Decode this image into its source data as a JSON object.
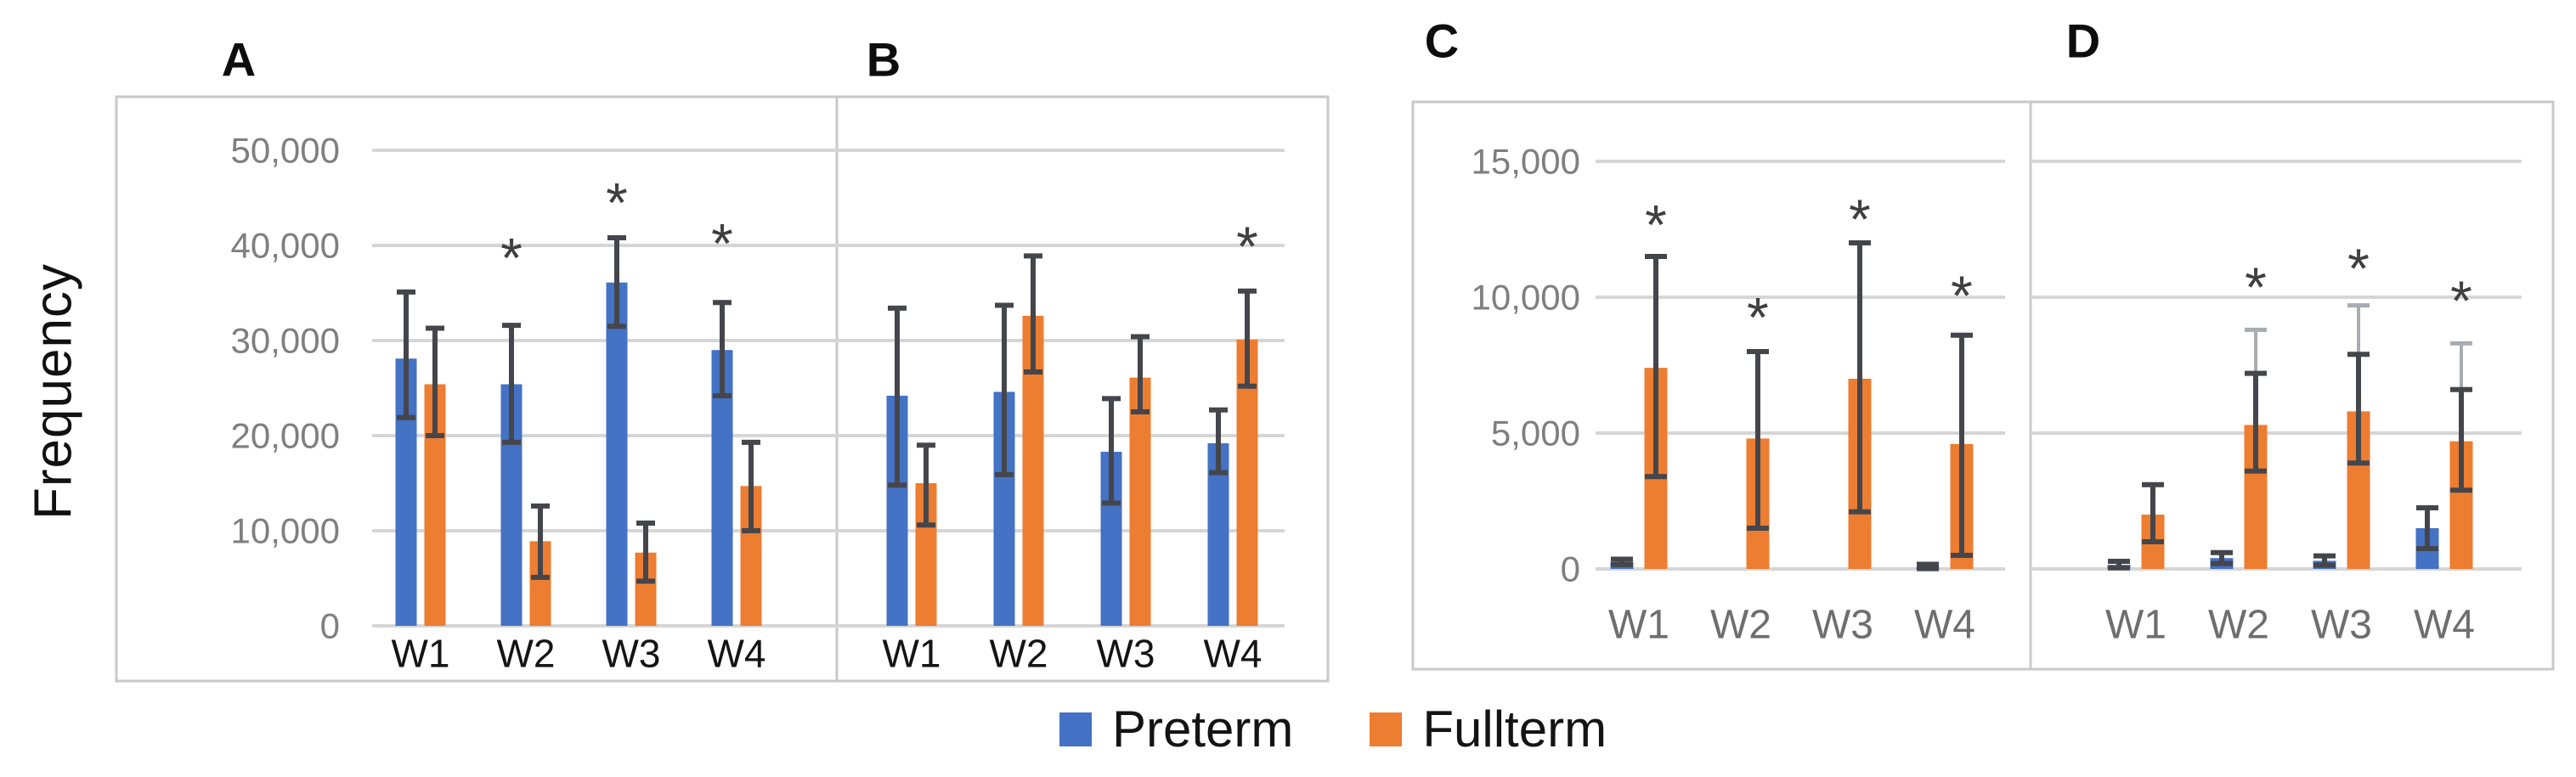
{
  "figure": {
    "y_axis_title": "Frequency",
    "sig_marker": "*"
  },
  "legend": {
    "items": [
      {
        "label": "Preterm",
        "color": "#4472C4"
      },
      {
        "label": "Fullterm",
        "color": "#ED7D31"
      }
    ]
  },
  "colors": {
    "preterm": "#4472C4",
    "fullterm": "#ED7D31",
    "error_bar": "#45464B",
    "light_whisker": "#A9ACB0",
    "gridline": "#D6D6D6",
    "panel_border": "#C9C9C9",
    "tick_label": "#7F7F7F",
    "xlabel_dark": "#141414",
    "xlabel_gray": "#6E6E6E",
    "asterisk": "#3F3F3F"
  },
  "chart_data": [
    {
      "type": "bar",
      "label": "A",
      "categories": [
        "W1",
        "W2",
        "W3",
        "W4"
      ],
      "ylim": [
        0,
        50000
      ],
      "yticks": [
        0,
        10000,
        20000,
        30000,
        40000,
        50000
      ],
      "show_ytick_labels": true,
      "grid": true,
      "series": [
        {
          "name": "Preterm",
          "color": "#4472C4",
          "values": [
            28100,
            25400,
            36100,
            29000
          ],
          "err_lo": [
            21900,
            19300,
            31500,
            24200
          ],
          "err_hi": [
            35100,
            31600,
            40800,
            34000
          ]
        },
        {
          "name": "Fullterm",
          "color": "#ED7D31",
          "values": [
            25400,
            8900,
            7700,
            14700
          ],
          "err_lo": [
            20000,
            5100,
            4700,
            10000
          ],
          "err_hi": [
            31300,
            12600,
            10800,
            19300
          ]
        }
      ],
      "asterisks": [
        {
          "category": "W2",
          "series": "Preterm",
          "y": 38800
        },
        {
          "category": "W3",
          "series": "Preterm",
          "y": 44600
        },
        {
          "category": "W4",
          "series": "Preterm",
          "y": 40300
        }
      ]
    },
    {
      "type": "bar",
      "label": "B",
      "categories": [
        "W1",
        "W2",
        "W3",
        "W4"
      ],
      "ylim": [
        0,
        50000
      ],
      "yticks": [
        0,
        10000,
        20000,
        30000,
        40000,
        50000
      ],
      "show_ytick_labels": false,
      "grid": true,
      "series": [
        {
          "name": "Preterm",
          "color": "#4472C4",
          "values": [
            24200,
            24600,
            18300,
            19200
          ],
          "err_lo": [
            14800,
            15900,
            12900,
            16100
          ],
          "err_hi": [
            33400,
            33700,
            23900,
            22700
          ]
        },
        {
          "name": "Fullterm",
          "color": "#ED7D31",
          "values": [
            15000,
            32600,
            26100,
            30100
          ],
          "err_lo": [
            10600,
            26700,
            22500,
            25200
          ],
          "err_hi": [
            19000,
            38900,
            30400,
            35200
          ]
        }
      ],
      "asterisks": [
        {
          "category": "W4",
          "series": "Fullterm",
          "y": 40000
        }
      ]
    },
    {
      "type": "bar",
      "label": "C",
      "categories": [
        "W1",
        "W2",
        "W3",
        "W4"
      ],
      "ylim": [
        0,
        15000
      ],
      "yticks": [
        0,
        5000,
        10000,
        15000
      ],
      "show_ytick_labels": true,
      "grid": true,
      "series": [
        {
          "name": "Preterm",
          "color": "#4472C4",
          "values": [
            260,
            0,
            0,
            60
          ],
          "err_lo": [
            160,
            null,
            null,
            10
          ],
          "err_hi": [
            360,
            null,
            null,
            170
          ]
        },
        {
          "name": "Fullterm",
          "color": "#ED7D31",
          "values": [
            7400,
            4800,
            7000,
            4600
          ],
          "err_lo": [
            3400,
            1500,
            2100,
            500
          ],
          "err_hi": [
            11500,
            8000,
            12000,
            8600
          ]
        }
      ],
      "asterisks": [
        {
          "category": "W1",
          "series": "Fullterm",
          "y": 12700
        },
        {
          "category": "W2",
          "series": "Fullterm",
          "y": 9300
        },
        {
          "category": "W3",
          "series": "Fullterm",
          "y": 12900
        },
        {
          "category": "W4",
          "series": "Fullterm",
          "y": 10100
        }
      ]
    },
    {
      "type": "bar",
      "label": "D",
      "categories": [
        "W1",
        "W2",
        "W3",
        "W4"
      ],
      "ylim": [
        0,
        15000
      ],
      "yticks": [
        0,
        5000,
        10000,
        15000
      ],
      "show_ytick_labels": false,
      "grid": true,
      "series": [
        {
          "name": "Preterm",
          "color": "#4472C4",
          "values": [
            150,
            400,
            300,
            1500
          ],
          "err_lo": [
            40,
            200,
            140,
            750
          ],
          "err_hi": [
            280,
            600,
            480,
            2250
          ]
        },
        {
          "name": "Fullterm",
          "color": "#ED7D31",
          "values": [
            2000,
            5300,
            5800,
            4700
          ],
          "err_lo": [
            1000,
            3600,
            3900,
            2900
          ],
          "err_hi": [
            3100,
            7200,
            7900,
            6600
          ],
          "whisker_hi": [
            null,
            8800,
            9700,
            8300
          ]
        }
      ],
      "asterisks": [
        {
          "category": "W2",
          "series": "Fullterm",
          "y": 10400
        },
        {
          "category": "W3",
          "series": "Fullterm",
          "y": 11100
        },
        {
          "category": "W4",
          "series": "Fullterm",
          "y": 9900
        }
      ]
    }
  ]
}
